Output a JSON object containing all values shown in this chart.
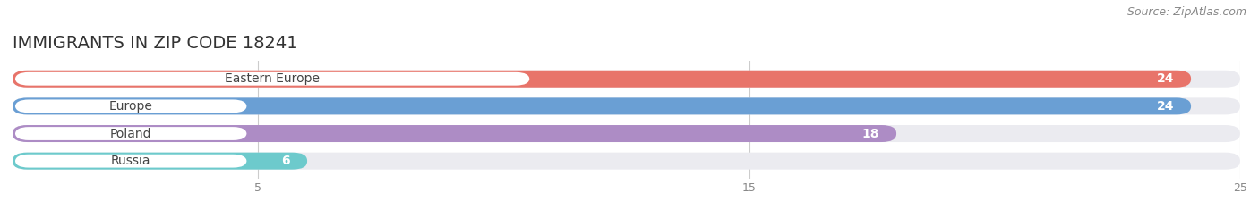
{
  "title": "IMMIGRANTS IN ZIP CODE 18241",
  "source": "Source: ZipAtlas.com",
  "categories": [
    "Eastern Europe",
    "Europe",
    "Poland",
    "Russia"
  ],
  "values": [
    24,
    24,
    18,
    6
  ],
  "bar_colors": [
    "#E8746A",
    "#6A9FD4",
    "#A D8CC5",
    "#6DCACC"
  ],
  "bar_bg_color": "#EBEBF0",
  "xlim": [
    0,
    25
  ],
  "xticks": [
    5,
    15,
    25
  ],
  "bar_height": 0.62,
  "figsize": [
    14.06,
    2.44
  ],
  "dpi": 100,
  "title_fontsize": 14,
  "label_fontsize": 10,
  "value_fontsize": 10,
  "source_fontsize": 9,
  "pill_color": "#FFFFFF",
  "label_text_color": "#444444",
  "value_text_color": "#FFFFFF"
}
